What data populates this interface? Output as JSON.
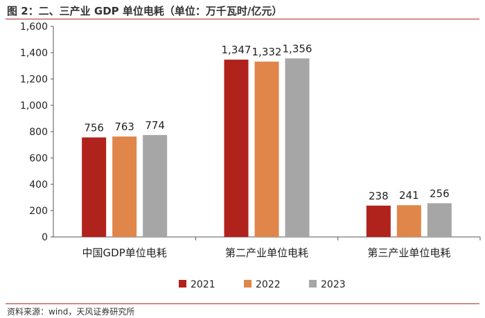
{
  "title": "图 2：二、三产业 GDP 单位电耗（单位：万千瓦时/亿元）",
  "source": "资料来源：wind，天风证券研究所",
  "colors": {
    "2021": "#b0231d",
    "2022": "#e0864a",
    "2023": "#a6a6a6",
    "rule": "#b22a24"
  },
  "chart_data": {
    "type": "bar",
    "categories": [
      "中国GDP单位电耗",
      "第二产业单位电耗",
      "第三产业单位电耗"
    ],
    "series": [
      {
        "name": "2021",
        "values": [
          756,
          1347,
          238
        ]
      },
      {
        "name": "2022",
        "values": [
          763,
          1332,
          241
        ]
      },
      {
        "name": "2023",
        "values": [
          774,
          1356,
          256
        ]
      }
    ],
    "value_labels": [
      [
        "756",
        "1,347",
        "238"
      ],
      [
        "763",
        "1,332",
        "241"
      ],
      [
        "774",
        "1,356",
        "256"
      ]
    ],
    "yticks": [
      "0",
      "200",
      "400",
      "600",
      "800",
      "1,000",
      "1,200",
      "1,400",
      "1,600"
    ],
    "ylim": [
      0,
      1600
    ],
    "grid": false,
    "legend_position": "bottom"
  }
}
